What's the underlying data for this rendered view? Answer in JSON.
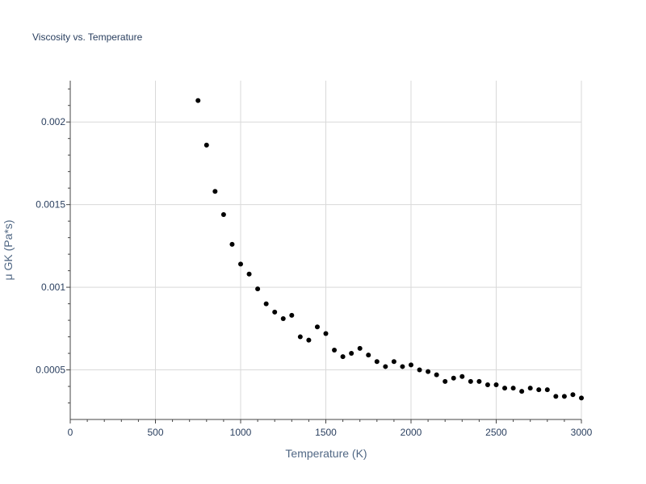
{
  "chart_data": {
    "type": "scatter",
    "title": "Viscosity vs. Temperature",
    "xlabel": "Temperature (K)",
    "ylabel": "μ GK (Pa*s)",
    "xlim": [
      0,
      3000
    ],
    "ylim": [
      0.0002,
      0.00225
    ],
    "grid": true,
    "x_ticks": [
      0,
      500,
      1000,
      1500,
      2000,
      2500,
      3000
    ],
    "x_tick_labels": [
      "0",
      "500",
      "1000",
      "1500",
      "2000",
      "2500",
      "3000"
    ],
    "y_ticks": [
      0.0005,
      0.001,
      0.0015,
      0.002
    ],
    "y_tick_labels": [
      "0.0005",
      "0.001",
      "0.0015",
      "0.002"
    ],
    "marker_color": "#000000",
    "series": [
      {
        "name": "μ GK",
        "x": [
          750,
          800,
          850,
          900,
          950,
          1000,
          1050,
          1100,
          1150,
          1200,
          1250,
          1300,
          1350,
          1400,
          1450,
          1500,
          1550,
          1600,
          1650,
          1700,
          1750,
          1800,
          1850,
          1900,
          1950,
          2000,
          2050,
          2100,
          2150,
          2200,
          2250,
          2300,
          2350,
          2400,
          2450,
          2500,
          2550,
          2600,
          2650,
          2700,
          2750,
          2800,
          2850,
          2900,
          2950,
          3000
        ],
        "y": [
          0.00213,
          0.00186,
          0.00158,
          0.00144,
          0.00126,
          0.00114,
          0.00108,
          0.00099,
          0.0009,
          0.00085,
          0.00081,
          0.00083,
          0.0007,
          0.00068,
          0.00076,
          0.00072,
          0.00062,
          0.00058,
          0.0006,
          0.00063,
          0.00059,
          0.00055,
          0.00052,
          0.00055,
          0.00052,
          0.00053,
          0.0005,
          0.00049,
          0.00047,
          0.00043,
          0.00045,
          0.00046,
          0.00043,
          0.00043,
          0.00041,
          0.00041,
          0.00039,
          0.00039,
          0.00037,
          0.00039,
          0.00038,
          0.00038,
          0.00034,
          0.00034,
          0.00035,
          0.00033
        ]
      }
    ]
  }
}
